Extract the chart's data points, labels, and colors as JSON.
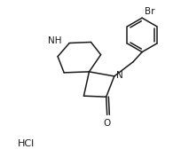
{
  "background_color": "#ffffff",
  "bond_color": "#1a1a1a",
  "atom_color": "#1a1a1a",
  "label_HCl": "HCl",
  "label_Br": "Br",
  "label_NH": "NH",
  "label_N": "N",
  "label_O": "O",
  "label_fontsize": 7.5,
  "figsize": [
    2.05,
    1.86
  ],
  "dpi": 100,
  "lw": 1.1
}
